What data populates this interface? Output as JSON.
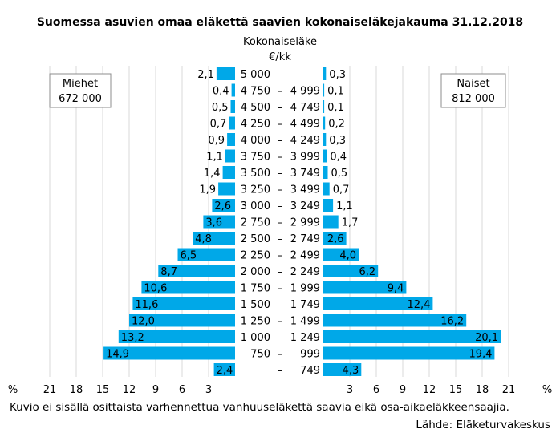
{
  "chart_data": {
    "type": "bar",
    "orientation": "horizontal",
    "layout": "population-pyramid",
    "title": "Suomessa asuvien omaa eläkettä saavien kokonaiseläkejakauma 31.12.2018",
    "axis_title_line1": "Kokonaiseläke",
    "axis_title_line2": "€/kk",
    "percent_label": "%",
    "xlim": [
      0,
      21
    ],
    "xticks": [
      21,
      18,
      15,
      12,
      9,
      6,
      3
    ],
    "categories": [
      {
        "low": "5 000",
        "high": ""
      },
      {
        "low": "4 750",
        "high": "4 999"
      },
      {
        "low": "4 500",
        "high": "4 749"
      },
      {
        "low": "4 250",
        "high": "4 499"
      },
      {
        "low": "4 000",
        "high": "4 249"
      },
      {
        "low": "3 750",
        "high": "3 999"
      },
      {
        "low": "3 500",
        "high": "3 749"
      },
      {
        "low": "3 250",
        "high": "3 499"
      },
      {
        "low": "3 000",
        "high": "3 249"
      },
      {
        "low": "2 750",
        "high": "2 999"
      },
      {
        "low": "2 500",
        "high": "2 749"
      },
      {
        "low": "2 250",
        "high": "2 499"
      },
      {
        "low": "2 000",
        "high": "2 249"
      },
      {
        "low": "1 750",
        "high": "1 999"
      },
      {
        "low": "1 500",
        "high": "1 749"
      },
      {
        "low": "1 250",
        "high": "1 499"
      },
      {
        "low": "1 000",
        "high": "1 249"
      },
      {
        "low": "750",
        "high": "999"
      },
      {
        "low": "",
        "high": "749"
      }
    ],
    "series": [
      {
        "name": "Miehet",
        "count": "672 000",
        "side": "left",
        "values": [
          2.1,
          0.4,
          0.5,
          0.7,
          0.9,
          1.1,
          1.4,
          1.9,
          2.6,
          3.6,
          4.8,
          6.5,
          8.7,
          10.6,
          11.6,
          12.0,
          13.2,
          14.9,
          2.4
        ]
      },
      {
        "name": "Naiset",
        "count": "812 000",
        "side": "right",
        "values": [
          0.3,
          0.1,
          0.1,
          0.2,
          0.3,
          0.4,
          0.5,
          0.7,
          1.1,
          1.7,
          2.6,
          4.0,
          6.2,
          9.4,
          12.4,
          16.2,
          20.1,
          19.4,
          4.3
        ]
      }
    ],
    "grid": true,
    "bar_color": "#00a8e8",
    "footnote": "Kuvio ei sisällä osittaista varhennettua vanhuuseläkettä saavia eikä osa-aikaeläkkeensaajia.",
    "source": "Lähde: Eläketurvakeskus"
  }
}
